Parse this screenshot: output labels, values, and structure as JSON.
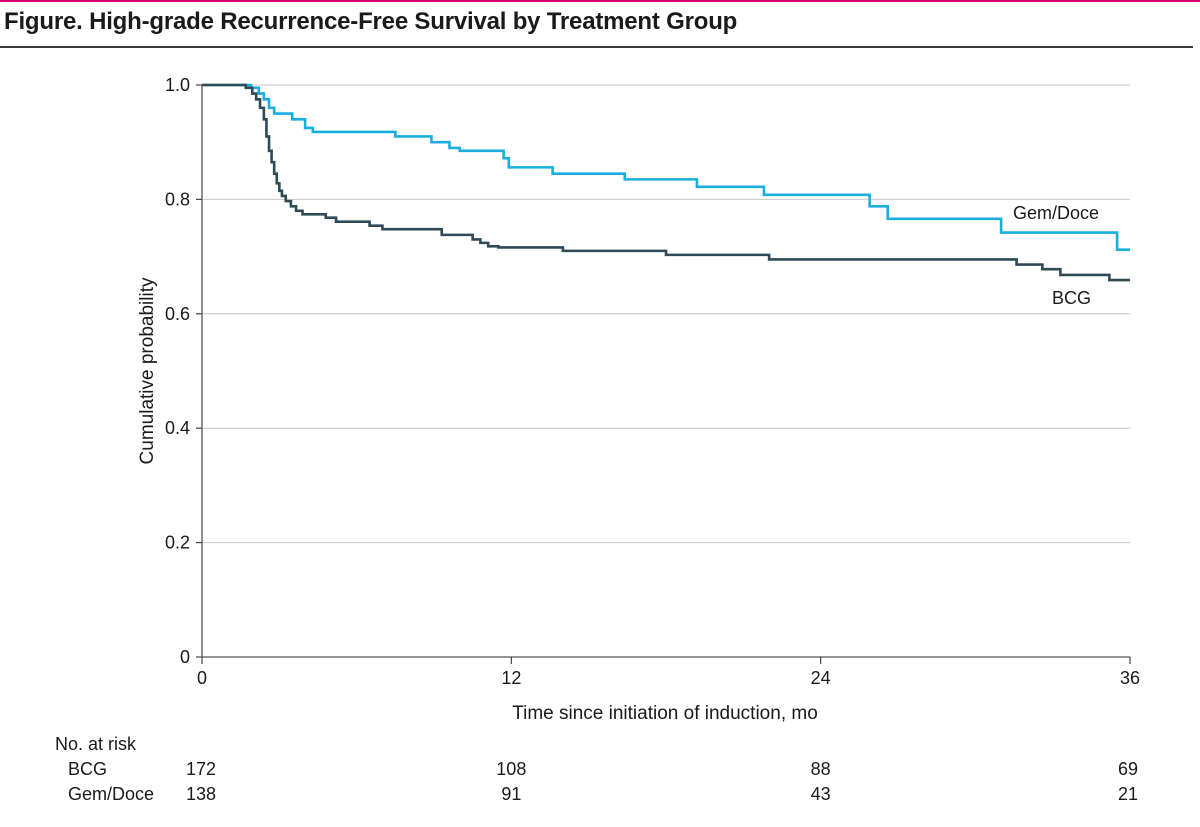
{
  "figure": {
    "title": "Figure. High-grade Recurrence-Free Survival by Treatment Group"
  },
  "colors": {
    "accent_rule": "#d6006f",
    "bcg": "#2f4a57",
    "gem_doce": "#1aaee0",
    "grid": "#c8c8c8"
  },
  "chart_data": {
    "type": "line",
    "subtype": "kaplan-meier step",
    "title": "High-grade Recurrence-Free Survival by Treatment Group",
    "xlabel": "Time since initiation of induction, mo",
    "ylabel": "Cumulative probability",
    "xlim": [
      0,
      36
    ],
    "ylim": [
      0,
      1.0
    ],
    "xticks": [
      0,
      12,
      24,
      36
    ],
    "xtick_labels": [
      "0",
      "12",
      "24",
      "36"
    ],
    "yticks": [
      0,
      0.2,
      0.4,
      0.6,
      0.8,
      1.0
    ],
    "ytick_labels": [
      "0",
      "0.2",
      "0.4",
      "0.6",
      "0.8",
      "1.0"
    ],
    "grid": "horizontal",
    "series": [
      {
        "name": "Gem/Doce",
        "label": "Gem/Doce",
        "color": "#1aaee0",
        "steps": [
          [
            0,
            1.0
          ],
          [
            1.9,
            0.995
          ],
          [
            2.2,
            0.985
          ],
          [
            2.4,
            0.975
          ],
          [
            2.6,
            0.96
          ],
          [
            2.8,
            0.95
          ],
          [
            3.5,
            0.94
          ],
          [
            4.0,
            0.925
          ],
          [
            4.3,
            0.918
          ],
          [
            7.5,
            0.91
          ],
          [
            8.9,
            0.9
          ],
          [
            9.6,
            0.89
          ],
          [
            10.0,
            0.885
          ],
          [
            11.7,
            0.872
          ],
          [
            11.9,
            0.856
          ],
          [
            13.6,
            0.845
          ],
          [
            16.4,
            0.835
          ],
          [
            19.2,
            0.822
          ],
          [
            21.8,
            0.808
          ],
          [
            25.9,
            0.788
          ],
          [
            26.6,
            0.766
          ],
          [
            31.0,
            0.742
          ],
          [
            35.5,
            0.712
          ],
          [
            36.0,
            0.712
          ]
        ]
      },
      {
        "name": "BCG",
        "label": "BCG",
        "color": "#2f4a57",
        "steps": [
          [
            0,
            1.0
          ],
          [
            1.7,
            0.995
          ],
          [
            1.95,
            0.985
          ],
          [
            2.1,
            0.975
          ],
          [
            2.25,
            0.96
          ],
          [
            2.4,
            0.94
          ],
          [
            2.5,
            0.91
          ],
          [
            2.6,
            0.885
          ],
          [
            2.7,
            0.865
          ],
          [
            2.8,
            0.845
          ],
          [
            2.9,
            0.828
          ],
          [
            3.0,
            0.815
          ],
          [
            3.1,
            0.806
          ],
          [
            3.25,
            0.797
          ],
          [
            3.45,
            0.788
          ],
          [
            3.65,
            0.78
          ],
          [
            3.9,
            0.774
          ],
          [
            4.8,
            0.768
          ],
          [
            5.2,
            0.761
          ],
          [
            6.5,
            0.754
          ],
          [
            7.0,
            0.748
          ],
          [
            9.3,
            0.738
          ],
          [
            10.5,
            0.73
          ],
          [
            10.8,
            0.724
          ],
          [
            11.1,
            0.718
          ],
          [
            11.5,
            0.716
          ],
          [
            14.0,
            0.71
          ],
          [
            18.0,
            0.703
          ],
          [
            22.0,
            0.695
          ],
          [
            31.6,
            0.686
          ],
          [
            32.6,
            0.678
          ],
          [
            33.3,
            0.668
          ],
          [
            35.2,
            0.659
          ],
          [
            36.0,
            0.659
          ]
        ]
      }
    ],
    "risk_table": {
      "header": "No. at risk",
      "rows": [
        {
          "group": "BCG",
          "values": [
            "172",
            "108",
            "88",
            "69"
          ]
        },
        {
          "group": "Gem/Doce",
          "values": [
            "138",
            "91",
            "43",
            "21"
          ]
        }
      ]
    }
  }
}
